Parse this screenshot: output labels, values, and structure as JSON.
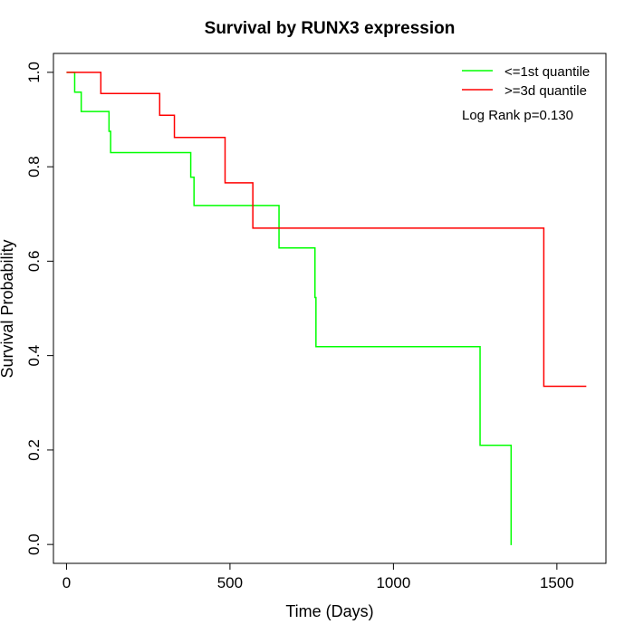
{
  "chart_data": {
    "type": "line",
    "title": "Survival by RUNX3 expression",
    "xlabel": "Time (Days)",
    "ylabel": "Survival Probability",
    "xlim": [
      -40,
      1650
    ],
    "ylim": [
      -0.04,
      1.04
    ],
    "x_ticks": [
      "0",
      "500",
      "1000",
      "1500"
    ],
    "x_tick_values": [
      0,
      500,
      1000,
      1500
    ],
    "y_ticks": [
      "0.0",
      "0.2",
      "0.4",
      "0.6",
      "0.8",
      "1.0"
    ],
    "y_tick_values": [
      0,
      0.2,
      0.4,
      0.6,
      0.8,
      1.0
    ],
    "grid": false,
    "legend_position": "top-right",
    "annotation": "Log Rank p=0.130",
    "series": [
      {
        "name": "<=1st quantile",
        "color": "#00ff00",
        "step": true,
        "x": [
          0,
          25,
          45,
          130,
          135,
          380,
          390,
          650,
          760,
          763,
          1265,
          1360,
          1362
        ],
        "y": [
          1.0,
          0.958,
          0.917,
          0.875,
          0.83,
          0.778,
          0.718,
          0.628,
          0.523,
          0.419,
          0.21,
          0.0,
          0.0
        ]
      },
      {
        "name": ">=3d quantile",
        "color": "#ff0000",
        "step": true,
        "x": [
          0,
          105,
          285,
          330,
          485,
          570,
          1460,
          1590
        ],
        "y": [
          1.0,
          0.955,
          0.909,
          0.862,
          0.766,
          0.67,
          0.335,
          0.335
        ]
      }
    ]
  }
}
